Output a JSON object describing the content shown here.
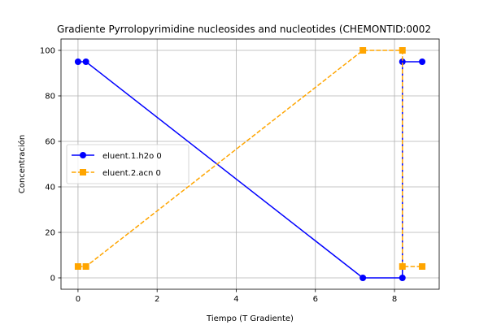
{
  "chart_data": {
    "type": "line",
    "title": "Gradiente Pyrrolopyrimidine nucleosides and nucleotides (CHEMONTID:0002",
    "xlabel": "Tiempo (T Gradiente)",
    "ylabel": "Concentración",
    "xlim": [
      -0.43,
      9.13
    ],
    "ylim": [
      -5,
      105
    ],
    "xticks": [
      0,
      2,
      4,
      6,
      8
    ],
    "yticks": [
      0,
      20,
      40,
      60,
      80,
      100
    ],
    "grid": true,
    "legend_position": "center-left",
    "series": [
      {
        "name": "eluent.1.h2o 0",
        "color": "#0000ff",
        "linestyle": "solid",
        "marker": "circle",
        "x": [
          0,
          0.2,
          7.2,
          8.2,
          8.2,
          8.7
        ],
        "y": [
          95,
          95,
          0,
          0,
          95,
          95
        ]
      },
      {
        "name": "eluent.2.acn 0",
        "color": "#ffa500",
        "linestyle": "dashed",
        "marker": "square",
        "x": [
          0,
          0.2,
          7.2,
          8.2,
          8.2,
          8.7
        ],
        "y": [
          5,
          5,
          100,
          100,
          5,
          5
        ]
      }
    ]
  }
}
